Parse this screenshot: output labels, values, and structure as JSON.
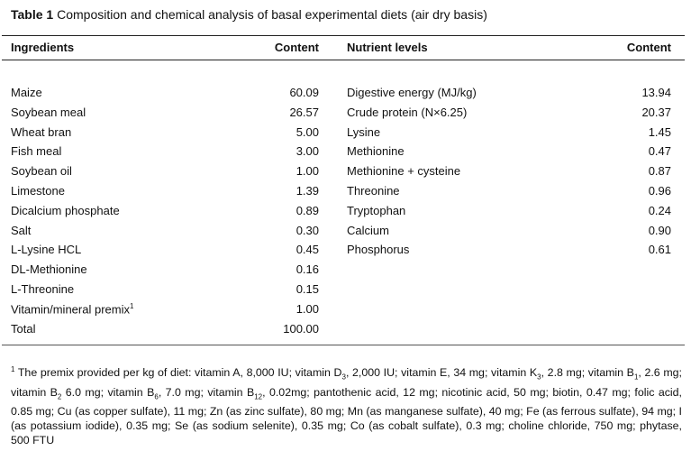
{
  "title": {
    "label": "Table 1",
    "text": " Composition and chemical analysis of basal experimental diets (air dry basis)"
  },
  "headers": {
    "ingredients": "Ingredients",
    "content1": "Content",
    "nutrients": "Nutrient levels",
    "content2": "Content"
  },
  "ingredients": [
    {
      "name": "Maize",
      "value": "60.09"
    },
    {
      "name": "Soybean meal",
      "value": "26.57"
    },
    {
      "name": "Wheat bran",
      "value": "5.00"
    },
    {
      "name": "Fish meal",
      "value": "3.00"
    },
    {
      "name": "Soybean oil",
      "value": "1.00"
    },
    {
      "name": "Limestone",
      "value": "1.39"
    },
    {
      "name": "Dicalcium phosphate",
      "value": "0.89"
    },
    {
      "name": "Salt",
      "value": "0.30"
    },
    {
      "name": "L-Lysine HCL",
      "value": "0.45"
    },
    {
      "name": "DL-Methionine",
      "value": "0.16"
    },
    {
      "name": "L-Threonine",
      "value": "0.15"
    },
    {
      "name": "Vitamin/mineral premix",
      "sup": "1",
      "value": "1.00"
    },
    {
      "name": "Total",
      "value": "100.00"
    }
  ],
  "nutrients": [
    {
      "name": "Digestive energy (MJ/kg)",
      "value": "13.94"
    },
    {
      "name": "Crude protein (N×6.25)",
      "value": "20.37"
    },
    {
      "name": "Lysine",
      "value": "1.45"
    },
    {
      "name": "Methionine",
      "value": "0.47"
    },
    {
      "name": "Methionine + cysteine",
      "value": "0.87"
    },
    {
      "name": "Threonine",
      "value": "0.96"
    },
    {
      "name": "Tryptophan",
      "value": "0.24"
    },
    {
      "name": "Calcium",
      "value": "0.90"
    },
    {
      "name": "Phosphorus",
      "value": "0.61"
    }
  ],
  "footnote": [
    {
      "sup": "1"
    },
    {
      "t": " The premix provided per kg of diet: vitamin A, 8,000 IU; vitamin D"
    },
    {
      "sub": "3"
    },
    {
      "t": ", 2,000 IU; vitamin E, 34 mg; vitamin K"
    },
    {
      "sub": "3"
    },
    {
      "t": ", 2.8 mg; vitamin B"
    },
    {
      "sub": "1"
    },
    {
      "t": ", 2.6 mg; vitamin B"
    },
    {
      "sub": "2"
    },
    {
      "t": " 6.0 mg; vitamin B"
    },
    {
      "sub": "6"
    },
    {
      "t": ", 7.0 mg; vitamin B"
    },
    {
      "sub": "12"
    },
    {
      "t": ", 0.02mg; pantothenic acid, 12 mg; nicotinic acid, 50 mg; biotin, 0.47 mg; folic acid, 0.85 mg; Cu (as copper sulfate), 11 mg; Zn (as zinc sulfate), 80 mg; Mn (as manganese sulfate), 40 mg; Fe (as ferrous sulfate), 94 mg; I (as potassium iodide), 0.35 mg; Se (as sodium selenite), 0.35 mg; Co (as cobalt sulfate), 0.3 mg; choline chloride, 750 mg; phytase, 500 FTU"
    }
  ]
}
